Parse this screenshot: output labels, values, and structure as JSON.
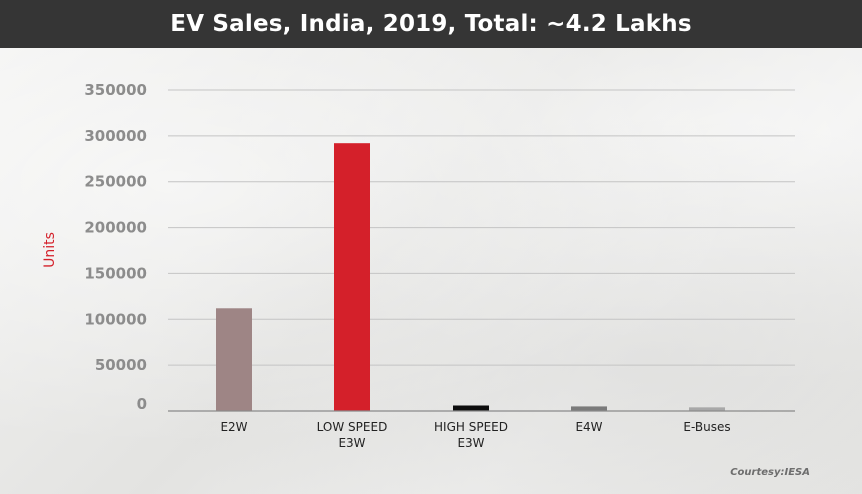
{
  "chart_data": {
    "type": "bar",
    "title": "EV Sales, India, 2019, Total: ~4.2 Lakhs",
    "xlabel": "",
    "ylabel": "Units",
    "ylim": [
      0,
      350000
    ],
    "yticks": [
      0,
      50000,
      100000,
      150000,
      200000,
      250000,
      300000,
      350000
    ],
    "categories": [
      [
        "E2W"
      ],
      [
        "LOW SPEED",
        "E3W"
      ],
      [
        "HIGH SPEED",
        "E3W"
      ],
      [
        "E4W"
      ],
      [
        "E-Buses"
      ]
    ],
    "values": [
      112000,
      292000,
      6000,
      5000,
      4000
    ],
    "colors": [
      "#9e8585",
      "#d4202a",
      "#0d0d0d",
      "#7a7a7a",
      "#a8a8a8"
    ],
    "grid": true
  },
  "source": "Courtesy:IESA",
  "colors": {
    "title_bar": "#353535",
    "accent": "#d4202a"
  }
}
